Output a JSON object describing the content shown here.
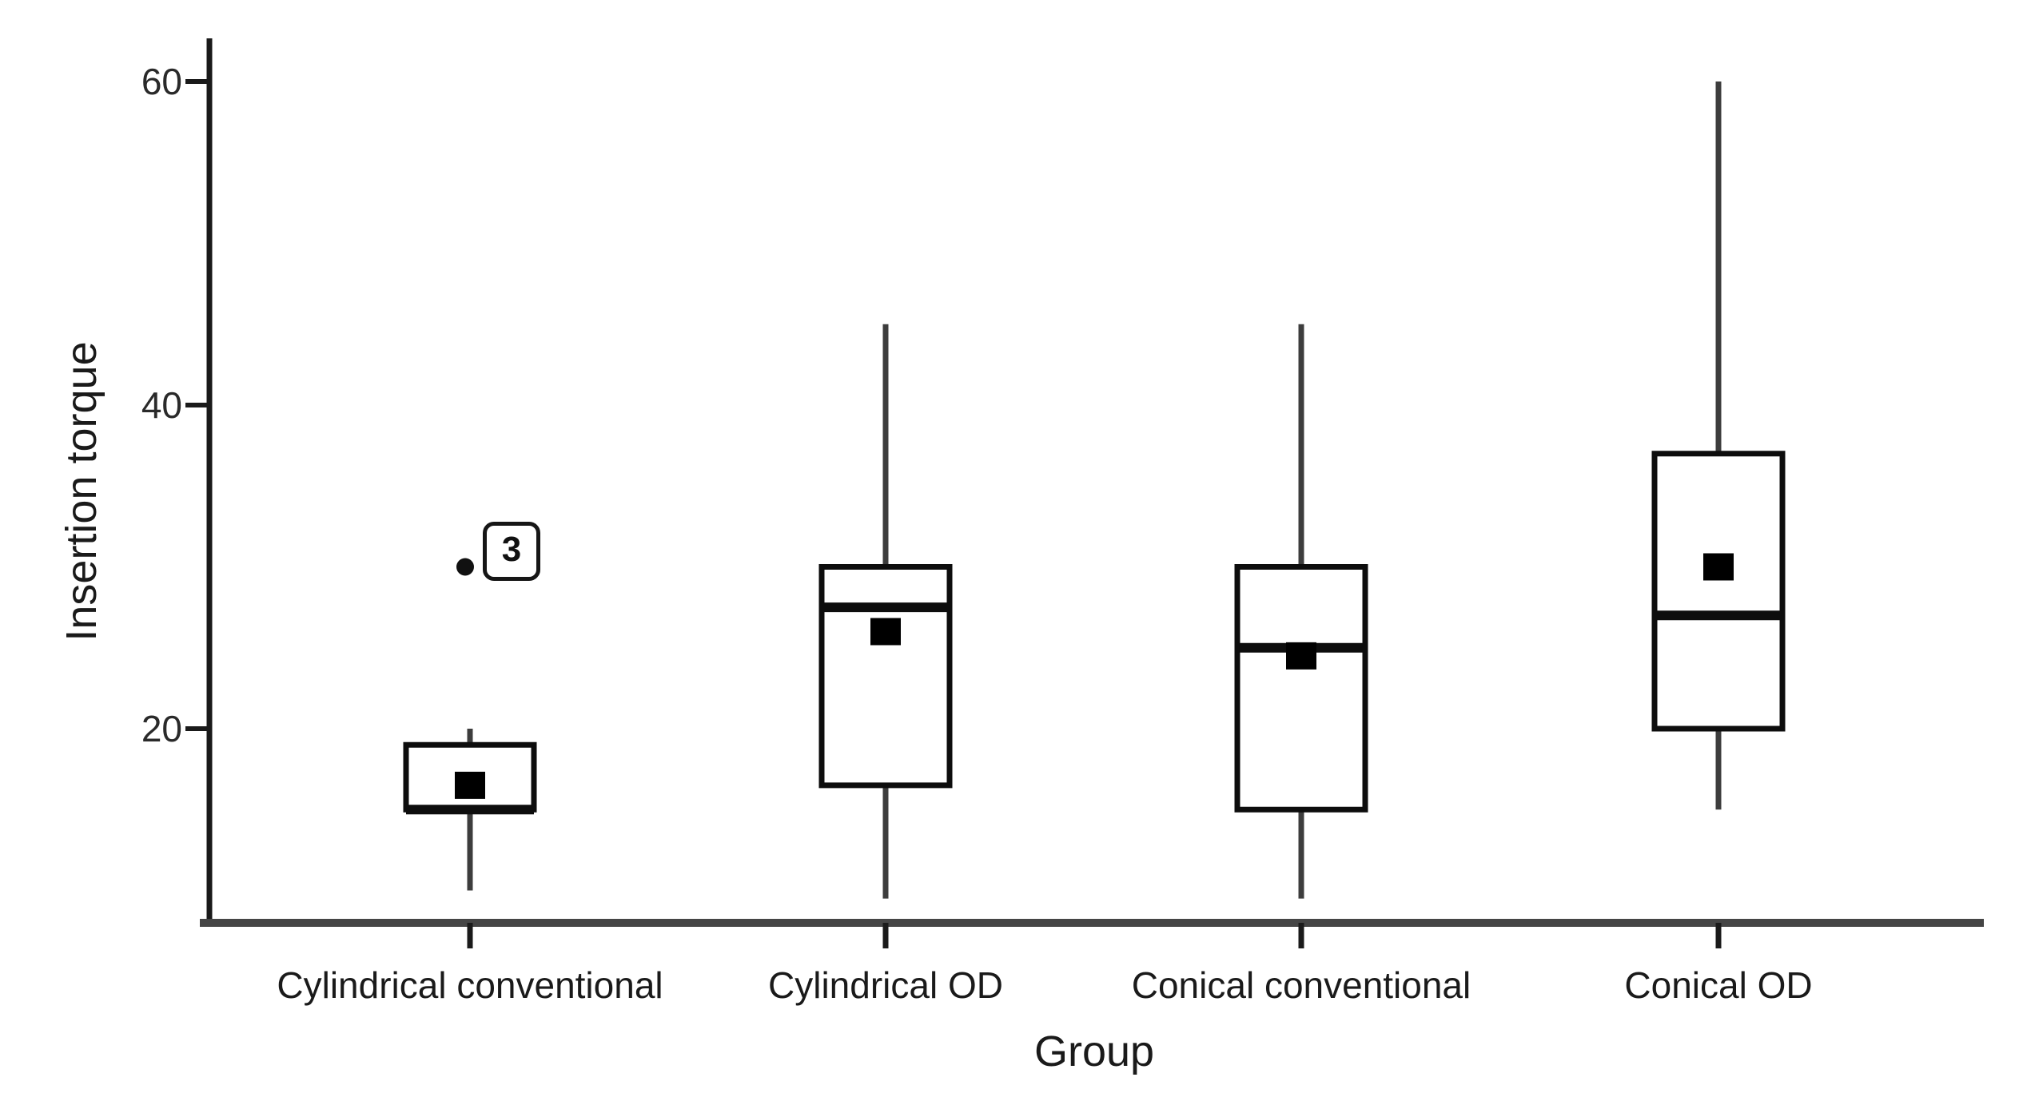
{
  "chart_data": {
    "type": "boxplot",
    "title": "",
    "xlabel": "Group",
    "ylabel": "Insertion torque",
    "categories": [
      "Cylindrical conventional",
      "Cylindrical OD",
      "Conical conventional",
      "Conical OD"
    ],
    "y_ticks": [
      60,
      40,
      20
    ],
    "ylim": [
      8,
      63
    ],
    "grid": false,
    "legend": "none",
    "series": [
      {
        "name": "Cylindrical conventional",
        "whisker_low": 10,
        "q1": 15,
        "median": 15,
        "q3": 19,
        "whisker_high": 20,
        "mean": 16.5,
        "outliers": [
          {
            "value": 30,
            "label": "3"
          }
        ]
      },
      {
        "name": "Cylindrical OD",
        "whisker_low": 9.5,
        "q1": 16.5,
        "median": 27.5,
        "q3": 30,
        "whisker_high": 45,
        "mean": 26,
        "outliers": []
      },
      {
        "name": "Conical conventional",
        "whisker_low": 9.5,
        "q1": 15,
        "median": 25,
        "q3": 30,
        "whisker_high": 45,
        "mean": 24.5,
        "outliers": []
      },
      {
        "name": "Conical OD",
        "whisker_low": 15,
        "q1": 20,
        "median": 27,
        "q3": 37,
        "whisker_high": 60,
        "mean": 30,
        "outliers": []
      }
    ],
    "colors": {
      "box_stroke": "#0d0d0d",
      "median": "#0d0d0d",
      "whisker": "#3d3d3d",
      "mean_marker": "#000000",
      "y_axis": "#1a1a1a",
      "x_axis": "#454545",
      "tick": "#1a1a1a",
      "text": "#1a1a1a",
      "background": "#ffffff"
    }
  }
}
